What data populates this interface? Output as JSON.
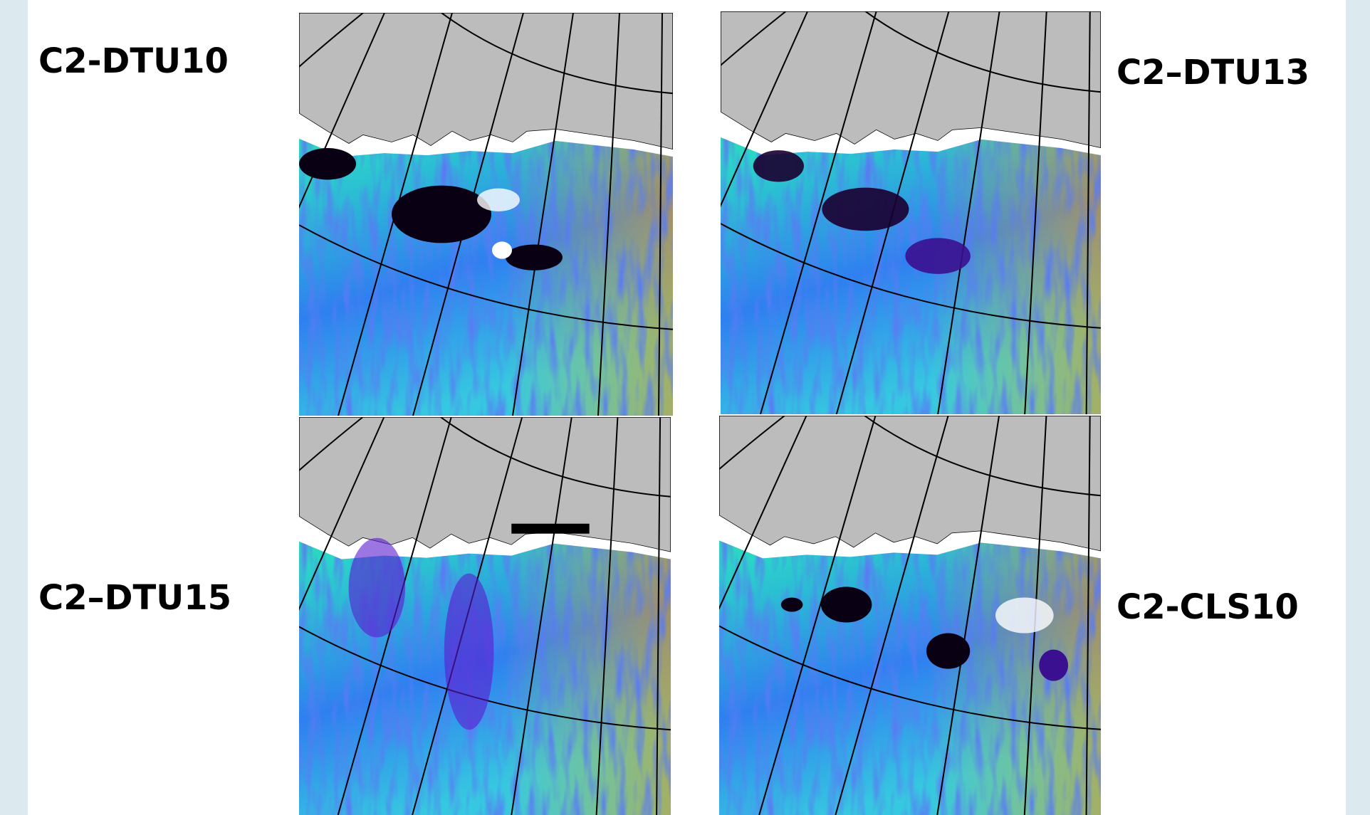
{
  "panels": [
    {
      "label": "C2-DTU10"
    },
    {
      "label": "C2–DTU13"
    },
    {
      "label": "C2–DTU15"
    },
    {
      "label": "C2-CLS10"
    }
  ]
}
